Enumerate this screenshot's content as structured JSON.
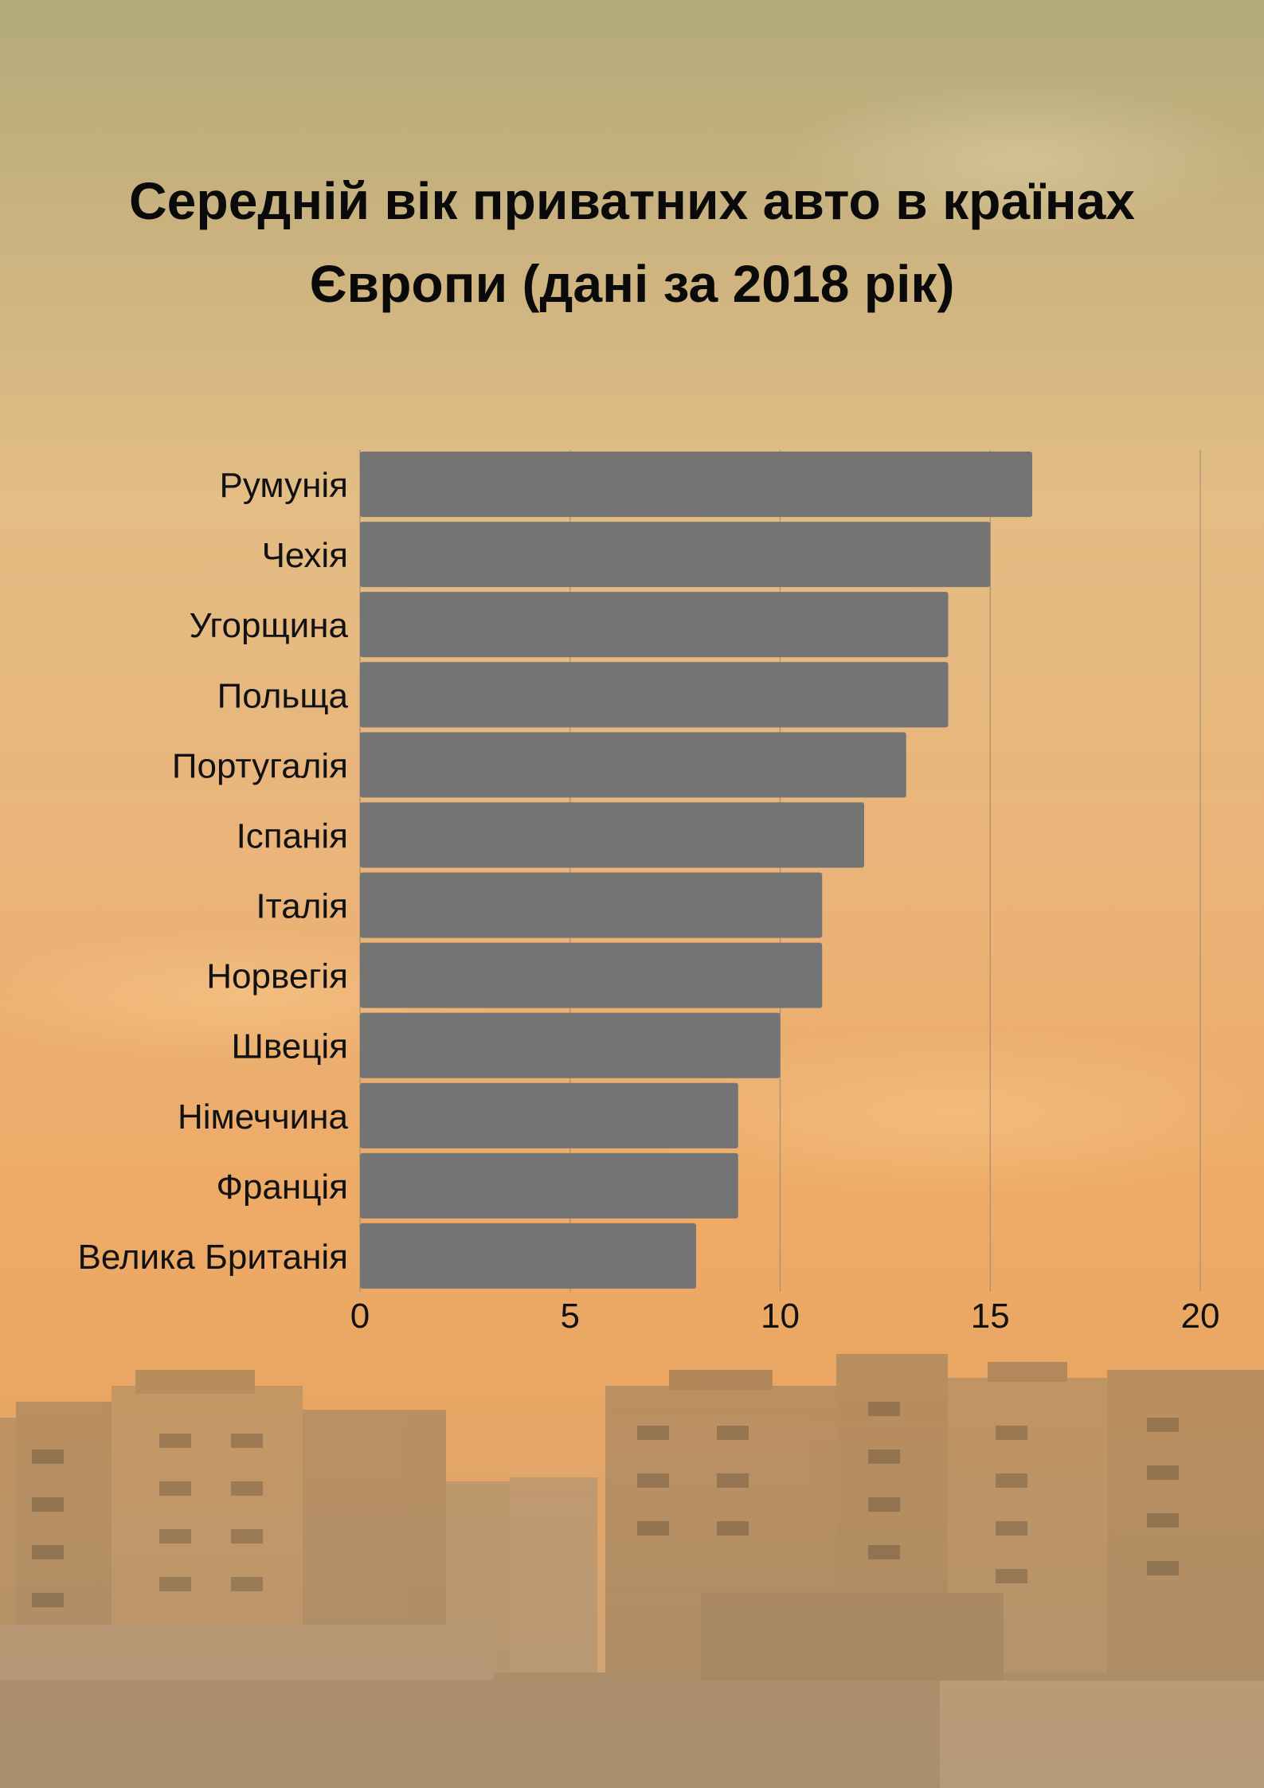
{
  "title_lines": [
    "Середній вік приватних авто в країнах",
    "Європи (дані за 2018 рік)"
  ],
  "colors": {
    "bar": "#747474",
    "grid": "#a48f72",
    "text": "#111111"
  },
  "chart_data": {
    "type": "bar",
    "orientation": "horizontal",
    "title": "Середній вік приватних авто в країнах Європи (дані за 2018 рік)",
    "categories": [
      "Румунія",
      "Чехія",
      "Угорщина",
      "Польща",
      "Португалія",
      "Іспанія",
      "Італія",
      "Норвегія",
      "Швеція",
      "Німеччина",
      "Франція",
      "Велика Британія"
    ],
    "values": [
      16,
      15,
      14,
      14,
      13,
      12,
      11,
      11,
      10,
      9,
      9,
      8
    ],
    "xlim": [
      0,
      20
    ],
    "xticks": [
      0,
      5,
      10,
      15,
      20
    ],
    "xlabel": "",
    "ylabel": "",
    "grid": "vertical",
    "legend": "none"
  }
}
